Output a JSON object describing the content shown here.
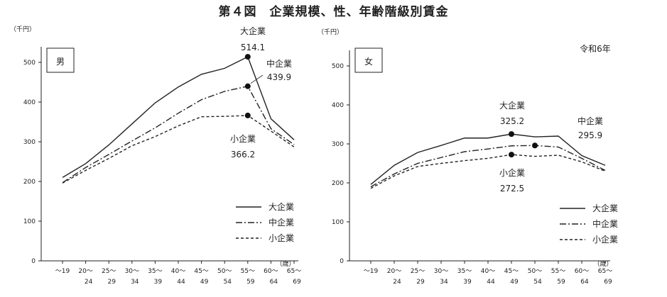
{
  "title": "第４図　企業規模、性、年齢階級別賃金",
  "note": "令和6年",
  "chart_data": [
    {
      "type": "line",
      "panel_label": "男",
      "y_unit": "（千円）",
      "x_unit": "（歳）",
      "categories": [
        "～19",
        "20～24",
        "25～29",
        "30～34",
        "35～39",
        "40～44",
        "45～49",
        "50～54",
        "55～59",
        "60～64",
        "65～69"
      ],
      "x_tick_top": [
        "～19",
        "20～",
        "25～",
        "30～",
        "35～",
        "40～",
        "45～",
        "50～",
        "55～",
        "60～",
        "65～"
      ],
      "x_tick_bottom": [
        "",
        "24",
        "29",
        "34",
        "39",
        "44",
        "49",
        "54",
        "59",
        "64",
        "69"
      ],
      "ylim": [
        0,
        500
      ],
      "yticks": [
        0,
        100,
        200,
        300,
        400,
        500
      ],
      "legend_position": "bottom-right",
      "series": [
        {
          "name": "大企業",
          "style": "solid",
          "values": [
            210,
            245,
            292,
            345,
            398,
            438,
            470,
            485,
            514.1,
            358,
            305
          ]
        },
        {
          "name": "中企業",
          "style": "dashdot",
          "values": [
            197,
            235,
            268,
            302,
            335,
            372,
            406,
            427,
            439.9,
            333,
            293
          ]
        },
        {
          "name": "小企業",
          "style": "dashed",
          "values": [
            196,
            228,
            258,
            290,
            313,
            340,
            363,
            364,
            366.2,
            327,
            287
          ]
        }
      ],
      "annotations": [
        {
          "series": 0,
          "index": 8,
          "name": "大企業",
          "value": "514.1"
        },
        {
          "series": 1,
          "index": 8,
          "name": "中企業",
          "value": "439.9"
        },
        {
          "series": 2,
          "index": 8,
          "name": "小企業",
          "value": "366.2"
        }
      ]
    },
    {
      "type": "line",
      "panel_label": "女",
      "y_unit": "（千円）",
      "x_unit": "（歳）",
      "categories": [
        "～19",
        "20～24",
        "25～29",
        "30～34",
        "35～39",
        "40～44",
        "45～49",
        "50～54",
        "55～59",
        "60～64",
        "65～69"
      ],
      "x_tick_top": [
        "～19",
        "20～",
        "25～",
        "30～",
        "35～",
        "40～",
        "45～",
        "50～",
        "55～",
        "60～",
        "65～"
      ],
      "x_tick_bottom": [
        "",
        "24",
        "29",
        "34",
        "39",
        "44",
        "49",
        "54",
        "59",
        "64",
        "69"
      ],
      "ylim": [
        0,
        500
      ],
      "yticks": [
        0,
        100,
        200,
        300,
        400,
        500
      ],
      "legend_position": "bottom-right",
      "series": [
        {
          "name": "大企業",
          "style": "solid",
          "values": [
            196,
            245,
            278,
            296,
            315,
            315,
            325.2,
            318,
            320,
            270,
            245
          ]
        },
        {
          "name": "中企業",
          "style": "dashdot",
          "values": [
            190,
            223,
            250,
            265,
            280,
            287,
            295,
            295.9,
            292,
            263,
            232
          ]
        },
        {
          "name": "小企業",
          "style": "dashed",
          "values": [
            186,
            218,
            242,
            250,
            257,
            263,
            272.5,
            268,
            271,
            254,
            230
          ]
        }
      ],
      "annotations": [
        {
          "series": 0,
          "index": 6,
          "name": "大企業",
          "value": "325.2"
        },
        {
          "series": 1,
          "index": 7,
          "name": "中企業",
          "value": "295.9"
        },
        {
          "series": 2,
          "index": 6,
          "name": "小企業",
          "value": "272.5"
        }
      ]
    }
  ]
}
